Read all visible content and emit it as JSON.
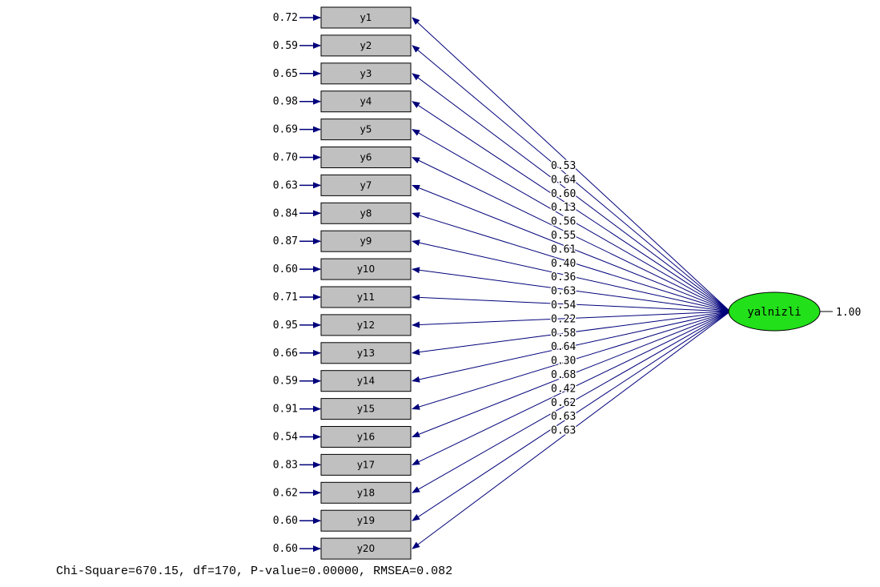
{
  "latent": {
    "label": "yalnizli",
    "variance": "1.00",
    "fill": "#22e01a"
  },
  "colors": {
    "arrow": "#00007a",
    "box_fill": "#c0c0c0",
    "box_stroke": "#000000"
  },
  "indicators": [
    {
      "label": "y1",
      "error": "0.72",
      "loading": "0.53"
    },
    {
      "label": "y2",
      "error": "0.59",
      "loading": "0.64"
    },
    {
      "label": "y3",
      "error": "0.65",
      "loading": "0.60"
    },
    {
      "label": "y4",
      "error": "0.98",
      "loading": "0.13"
    },
    {
      "label": "y5",
      "error": "0.69",
      "loading": "0.56"
    },
    {
      "label": "y6",
      "error": "0.70",
      "loading": "0.55"
    },
    {
      "label": "y7",
      "error": "0.63",
      "loading": "0.61"
    },
    {
      "label": "y8",
      "error": "0.84",
      "loading": "0.40"
    },
    {
      "label": "y9",
      "error": "0.87",
      "loading": "0.36"
    },
    {
      "label": "y10",
      "error": "0.60",
      "loading": "0.63"
    },
    {
      "label": "y11",
      "error": "0.71",
      "loading": "0.54"
    },
    {
      "label": "y12",
      "error": "0.95",
      "loading": "0.22"
    },
    {
      "label": "y13",
      "error": "0.66",
      "loading": "0.58"
    },
    {
      "label": "y14",
      "error": "0.59",
      "loading": "0.64"
    },
    {
      "label": "y15",
      "error": "0.91",
      "loading": "0.30"
    },
    {
      "label": "y16",
      "error": "0.54",
      "loading": "0.68"
    },
    {
      "label": "y17",
      "error": "0.83",
      "loading": "0.42"
    },
    {
      "label": "y18",
      "error": "0.62",
      "loading": "0.62"
    },
    {
      "label": "y19",
      "error": "0.60",
      "loading": "0.63"
    },
    {
      "label": "y20",
      "error": "0.60",
      "loading": "0.63"
    }
  ],
  "fit_stats": "Chi-Square=670.15, df=170, P-value=0.00000, RMSEA=0.082"
}
